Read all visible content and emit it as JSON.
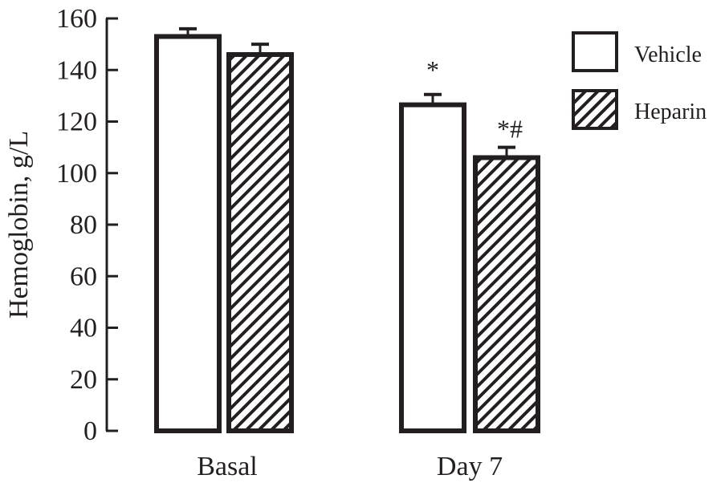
{
  "chart_data": {
    "type": "bar",
    "title": "",
    "xlabel": "",
    "ylabel": "Hemoglobin, g/L",
    "ylim": [
      0,
      160
    ],
    "yticks": [
      0,
      20,
      40,
      60,
      80,
      100,
      120,
      140,
      160
    ],
    "categories": [
      "Basal",
      "Day 7"
    ],
    "grid": false,
    "legend_position": "top-right",
    "series": [
      {
        "name": "Vehicle",
        "fill": "white",
        "values": [
          153,
          126.5
        ],
        "errors": [
          3,
          4
        ],
        "annotations": [
          "",
          "*"
        ]
      },
      {
        "name": "Heparin",
        "fill": "hatched",
        "values": [
          146,
          106
        ],
        "errors": [
          4,
          4
        ],
        "annotations": [
          "",
          "*#"
        ]
      }
    ],
    "colors": {
      "stroke": "#231f20",
      "background": "#ffffff"
    }
  }
}
